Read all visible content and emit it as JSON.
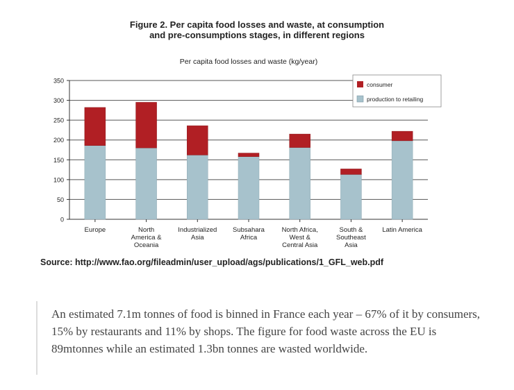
{
  "figure": {
    "title_line1": "Figure 2.  Per capita food losses and waste, at consumption",
    "title_line2": "and pre-consumptions stages, in different regions"
  },
  "chart_data": {
    "type": "bar",
    "stacked": true,
    "title": "Per capita food losses and waste (kg/year)",
    "categories": [
      [
        "Europe"
      ],
      [
        "North",
        "America &",
        "Oceania"
      ],
      [
        "Industrialized",
        "Asia"
      ],
      [
        "Subsahara",
        "Africa"
      ],
      [
        "North Africa,",
        "West &",
        "Central Asia"
      ],
      [
        "South &",
        "Southeast",
        "Asia"
      ],
      [
        "Latin America"
      ]
    ],
    "series": [
      {
        "name": "production to retailing",
        "color": "#a7c2cc",
        "values": [
          186,
          180,
          162,
          158,
          181,
          113,
          198
        ]
      },
      {
        "name": "consumer",
        "color": "#b11f24",
        "values": [
          96,
          115,
          74,
          9,
          34,
          14,
          24
        ]
      }
    ],
    "yticks": [
      0,
      50,
      100,
      150,
      200,
      250,
      300,
      350
    ],
    "ylim": [
      0,
      350
    ],
    "grid": true,
    "legend_position": "top-right"
  },
  "source": {
    "text": "Source: http://www.fao.org/fileadmin/user_upload/ags/publications/1_GFL_web.pdf"
  },
  "quote": {
    "text": "An estimated 7.1m tonnes of food is binned in France each year – 67% of it by consumers, 15% by restaurants and 11% by shops. The figure for food waste across the EU is 89mtonnes while an estimated 1.3bn tonnes are wasted worldwide."
  }
}
